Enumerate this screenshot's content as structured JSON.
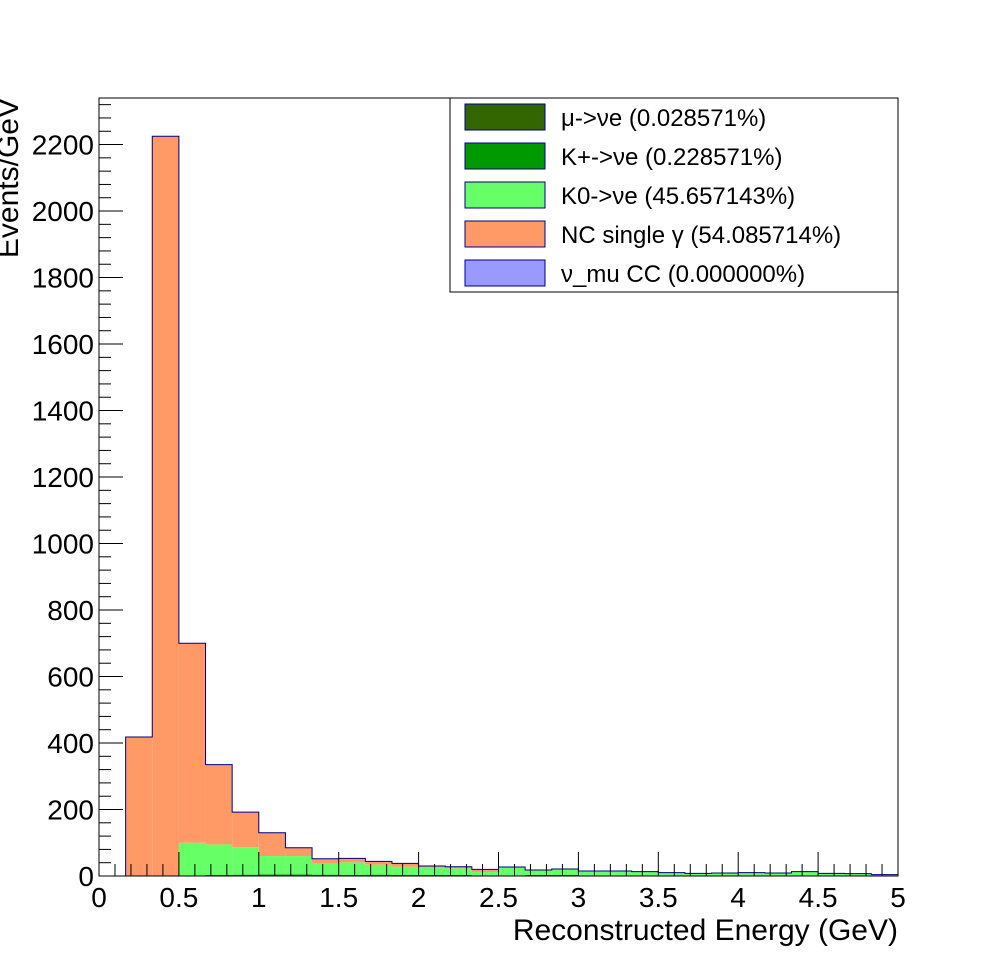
{
  "chart_data": {
    "type": "bar",
    "stacked": true,
    "xlabel": "Reconstructed Energy (GeV)",
    "ylabel": "Events/GeV",
    "xlim": [
      0,
      5
    ],
    "ylim": [
      0,
      2340
    ],
    "x_ticks": [
      "0",
      "0.5",
      "1",
      "1.5",
      "2",
      "2.5",
      "3",
      "3.5",
      "4",
      "4.5",
      "5"
    ],
    "y_ticks": [
      "0",
      "200",
      "400",
      "600",
      "800",
      "1000",
      "1200",
      "1400",
      "1600",
      "1800",
      "2000",
      "2200"
    ],
    "bin_edges": [
      0.0,
      0.1667,
      0.3333,
      0.5,
      0.6667,
      0.8333,
      1.0,
      1.1667,
      1.3333,
      1.5,
      1.6667,
      1.8333,
      2.0,
      2.1667,
      2.3333,
      2.5,
      2.6667,
      2.8333,
      3.0,
      3.1667,
      3.3333,
      3.5,
      3.6667,
      3.8333,
      4.0,
      4.1667,
      4.3333,
      4.5,
      4.6667,
      4.8333,
      5.0
    ],
    "series": [
      {
        "name": "μ->νe (0.028571%)",
        "color": "#336600",
        "values": [
          0,
          0,
          0,
          0,
          0,
          0,
          0,
          0,
          0,
          0,
          0,
          0,
          0,
          0,
          0,
          0,
          0,
          0,
          0,
          0,
          0,
          0,
          0,
          0,
          0,
          0,
          0,
          0,
          0,
          0
        ]
      },
      {
        "name": "K+->νe (0.228571%)",
        "color": "#009900",
        "values": [
          0,
          0,
          0,
          0,
          3,
          4,
          5,
          5,
          4,
          3,
          4,
          3,
          3,
          3,
          2,
          2,
          3,
          3,
          2,
          2,
          2,
          2,
          2,
          2,
          2,
          2,
          2,
          2,
          1,
          1
        ]
      },
      {
        "name": "K0->νe (45.657143%)",
        "color": "#66ff66",
        "values": [
          0,
          0,
          0,
          100,
          92,
          83,
          55,
          55,
          33,
          38,
          30,
          25,
          24,
          20,
          10,
          25,
          15,
          18,
          13,
          13,
          11,
          8,
          6,
          7,
          8,
          7,
          11,
          6,
          6,
          3
        ]
      },
      {
        "name": "NC single γ (54.085714%)",
        "color": "#ff9966",
        "values": [
          0,
          418,
          2225,
          600,
          240,
          105,
          70,
          25,
          15,
          12,
          10,
          10,
          3,
          5,
          8,
          0,
          0,
          0,
          0,
          0,
          0,
          0,
          0,
          0,
          0,
          0,
          0,
          0,
          0,
          0
        ]
      },
      {
        "name": "ν_mu CC (0.000000%)",
        "color": "#9999ff",
        "values": [
          0,
          0,
          0,
          0,
          0,
          0,
          0,
          0,
          0,
          0,
          0,
          0,
          0,
          0,
          0,
          0,
          0,
          0,
          0,
          0,
          0,
          0,
          0,
          0,
          0,
          0,
          0,
          0,
          0,
          0
        ]
      }
    ],
    "grid": false,
    "legend_position": "top-right"
  }
}
